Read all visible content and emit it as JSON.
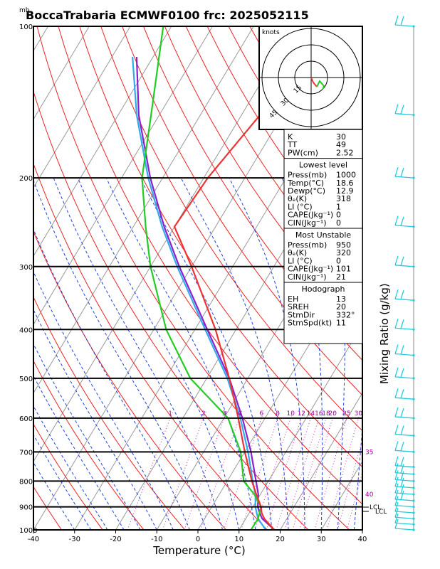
{
  "title": "BoccaTrabaria ECMWF0100 frc: 2025052115",
  "units_label": "mb",
  "xlabel": "Temperature (°C)",
  "ylabel_right": "Mixing Ratio (g/kg)",
  "hodograph": {
    "unit_label": "knots",
    "ring_labels": [
      "15",
      "30",
      "45"
    ]
  },
  "indices": {
    "rows": [
      {
        "label": "K",
        "value": "30"
      },
      {
        "label": "TT",
        "value": "49"
      },
      {
        "label": "PW(cm)",
        "value": "2.52"
      }
    ]
  },
  "lowest_level": {
    "heading": "Lowest level",
    "rows": [
      {
        "label": "Press(mb)",
        "value": "1000"
      },
      {
        "label": "Temp(°C)",
        "value": "18.6"
      },
      {
        "label": "Dewp(°C)",
        "value": "12.9"
      },
      {
        "label": "θₑ(K)",
        "value": "318"
      },
      {
        "label": "LI (°C)",
        "value": "1"
      },
      {
        "label": "CAPE(Jkg⁻¹)",
        "value": "0"
      },
      {
        "label": "CIN(Jkg⁻¹)",
        "value": "0"
      }
    ]
  },
  "most_unstable": {
    "heading": "Most Unstable",
    "rows": [
      {
        "label": "Press(mb)",
        "value": "950"
      },
      {
        "label": "θₑ(K)",
        "value": "320"
      },
      {
        "label": "LI (°C)",
        "value": "0"
      },
      {
        "label": "CAPE(Jkg⁻¹)",
        "value": "101"
      },
      {
        "label": "CIN(Jkg⁻¹)",
        "value": "21"
      }
    ]
  },
  "hodograph_box": {
    "heading": "Hodograph",
    "rows": [
      {
        "label": "EH",
        "value": "13"
      },
      {
        "label": "SREH",
        "value": "20"
      },
      {
        "label": "StmDir",
        "value": "332°"
      },
      {
        "label": "StmSpd(kt)",
        "value": "11"
      }
    ]
  },
  "lcl_labels": [
    "LCL",
    "LCL"
  ],
  "colors": {
    "temperature": "#ee3333",
    "dewpoint": "#22cc22",
    "parcel": "#8822cc",
    "virtual": "#33aaee",
    "dry_adiabat": "#ee2222",
    "moist_adiabat": "#2244dd",
    "mixing_ratio": "#bb33bb",
    "isotherm": "#999999",
    "wind_barb": "#22ccdd"
  },
  "chart_data": {
    "type": "line",
    "xlabel": "Temperature (°C)",
    "ylabel": "mb",
    "xlim": [
      -40,
      40
    ],
    "ylim": [
      1000,
      100
    ],
    "yscale": "log",
    "x_ticks": [
      "-40",
      "-30",
      "-20",
      "-10",
      "0",
      "10",
      "20",
      "30",
      "40"
    ],
    "y_ticks": [
      "100",
      "200",
      "300",
      "400",
      "500",
      "600",
      "700",
      "800",
      "900",
      "1000"
    ],
    "mixing_ratio_labels": [
      "1",
      "2",
      "3",
      "4",
      "6",
      "8",
      "10",
      "12",
      "14",
      "16",
      "18",
      "20",
      "25",
      "30",
      "35",
      "40"
    ],
    "series": [
      {
        "key": "temperature",
        "points": [
          [
            1000,
            18.6
          ],
          [
            950,
            14.5
          ],
          [
            925,
            13.0
          ],
          [
            900,
            12.0
          ],
          [
            850,
            9.0
          ],
          [
            800,
            6.0
          ],
          [
            700,
            0.0
          ],
          [
            600,
            -6.5
          ],
          [
            500,
            -14.5
          ],
          [
            400,
            -25.0
          ],
          [
            300,
            -40.0
          ],
          [
            250,
            -50.0
          ],
          [
            200,
            -49.0
          ],
          [
            150,
            -45.5
          ],
          [
            100,
            -41.0
          ]
        ]
      },
      {
        "key": "dewpoint",
        "points": [
          [
            1000,
            12.9
          ],
          [
            950,
            13.0
          ],
          [
            900,
            12.0
          ],
          [
            850,
            8.5
          ],
          [
            800,
            4.0
          ],
          [
            700,
            -1.0
          ],
          [
            600,
            -9.0
          ],
          [
            500,
            -24.0
          ],
          [
            400,
            -37.0
          ],
          [
            300,
            -50.0
          ],
          [
            250,
            -57.0
          ],
          [
            200,
            -65.0
          ],
          [
            150,
            -72.0
          ],
          [
            100,
            -82.0
          ]
        ]
      },
      {
        "key": "parcel",
        "points": [
          [
            1000,
            18.6
          ],
          [
            950,
            14.0
          ],
          [
            925,
            12.5
          ],
          [
            900,
            11.2
          ],
          [
            850,
            9.5
          ],
          [
            800,
            7.0
          ],
          [
            700,
            1.5
          ],
          [
            600,
            -5.5
          ],
          [
            500,
            -14.5
          ],
          [
            400,
            -27.0
          ],
          [
            300,
            -43.0
          ],
          [
            250,
            -52.5
          ],
          [
            200,
            -63.0
          ],
          [
            150,
            -75.0
          ],
          [
            115,
            -84.0
          ]
        ]
      },
      {
        "key": "virtual",
        "points": [
          [
            1000,
            16.5
          ],
          [
            950,
            13.0
          ],
          [
            925,
            11.8
          ],
          [
            900,
            10.6
          ],
          [
            850,
            8.8
          ],
          [
            800,
            6.2
          ],
          [
            700,
            0.8
          ],
          [
            600,
            -6.0
          ],
          [
            500,
            -15.0
          ],
          [
            400,
            -27.5
          ],
          [
            300,
            -43.5
          ],
          [
            250,
            -53.0
          ],
          [
            200,
            -63.5
          ],
          [
            150,
            -75.5
          ],
          [
            115,
            -85.0
          ]
        ]
      }
    ]
  }
}
